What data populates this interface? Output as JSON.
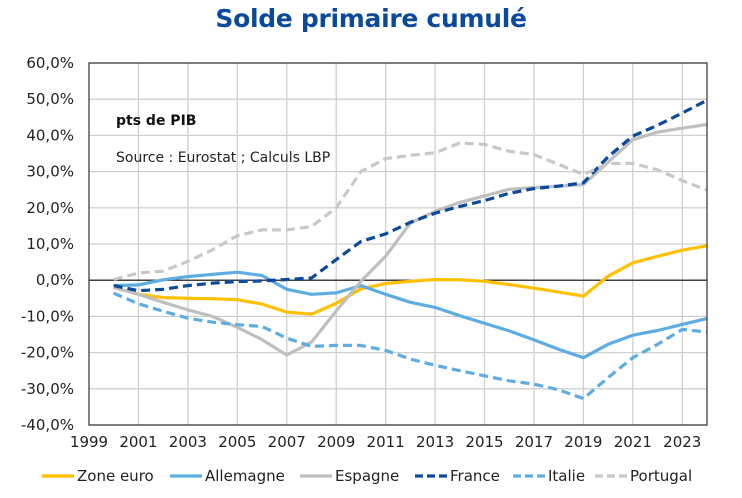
{
  "chart_data": {
    "type": "line",
    "title": "Solde primaire cumulé",
    "xlabel": "",
    "ylabel": "",
    "annotations": [
      "pts de PIB",
      "Source : Eurostat ; Calculs LBP"
    ],
    "xlim": [
      1999,
      2024
    ],
    "ylim": [
      -40,
      60
    ],
    "x_ticks": [
      1999,
      2001,
      2003,
      2005,
      2007,
      2009,
      2011,
      2013,
      2015,
      2017,
      2019,
      2021,
      2023
    ],
    "x_tick_labels": [
      "1999",
      "2001",
      "2003",
      "2005",
      "2007",
      "2009",
      "2011",
      "2013",
      "2015",
      "2017",
      "2019",
      "2021",
      "2023"
    ],
    "y_ticks": [
      60,
      50,
      40,
      30,
      20,
      10,
      0,
      -10,
      -20,
      -30,
      -40
    ],
    "y_tick_labels": [
      "60,0%",
      "50,0%",
      "40,0%",
      "30,0%",
      "20,0%",
      "10,0%",
      "0,0%",
      "-10,0%",
      "-20,0%",
      "-30,0%",
      "-40,0%"
    ],
    "grid": true,
    "legend_position": "bottom",
    "x": [
      2000,
      2001,
      2002,
      2003,
      2004,
      2005,
      2006,
      2007,
      2008,
      2009,
      2010,
      2011,
      2012,
      2013,
      2014,
      2015,
      2016,
      2017,
      2018,
      2019,
      2020,
      2021,
      2022,
      2023,
      2024
    ],
    "series": [
      {
        "name": "Zone euro",
        "color": "#FFC000",
        "dash": "solid",
        "values": [
          -2.0,
          -3.9,
          -4.8,
          -5.0,
          -5.1,
          -5.4,
          -6.6,
          -8.8,
          -9.4,
          -6.4,
          -2.4,
          -0.9,
          -0.3,
          0.2,
          0.1,
          -0.3,
          -1.2,
          -2.2,
          -3.3,
          -4.4,
          1.1,
          4.8,
          6.6,
          8.3,
          9.5
        ]
      },
      {
        "name": "Allemagne",
        "color": "#5DADE2",
        "dash": "solid",
        "values": [
          -1.5,
          -1.3,
          0.1,
          1.0,
          1.6,
          2.2,
          1.3,
          -2.5,
          -3.9,
          -3.5,
          -1.5,
          -3.9,
          -6.1,
          -7.5,
          -9.8,
          -11.9,
          -14.0,
          -16.5,
          -19.1,
          -21.4,
          -17.7,
          -15.2,
          -13.9,
          -12.2,
          -10.6
        ]
      },
      {
        "name": "Espagne",
        "color": "#BFBFBF",
        "dash": "solid",
        "values": [
          -2.0,
          -3.9,
          -6.1,
          -8.2,
          -10.0,
          -13.0,
          -16.4,
          -20.7,
          -17.1,
          -8.5,
          -0.3,
          6.6,
          15.8,
          19.0,
          21.5,
          23.3,
          25.1,
          25.6,
          26.0,
          26.4,
          32.6,
          38.8,
          40.9,
          42.0,
          43.0
        ]
      },
      {
        "name": "France",
        "color": "#0B4A9A",
        "dash": "dashed",
        "values": [
          -1.5,
          -2.9,
          -2.5,
          -1.5,
          -0.8,
          -0.4,
          -0.2,
          0.2,
          0.6,
          5.7,
          10.7,
          12.8,
          16.0,
          18.5,
          20.4,
          22.0,
          24.0,
          25.3,
          26.0,
          26.9,
          34.1,
          39.8,
          42.8,
          46.2,
          49.7
        ]
      },
      {
        "name": "Italie",
        "color": "#5DADE2",
        "dash": "dashed",
        "values": [
          -3.6,
          -6.5,
          -8.6,
          -10.5,
          -11.6,
          -12.3,
          -12.8,
          -16.0,
          -18.3,
          -18.0,
          -18.0,
          -19.4,
          -21.8,
          -23.5,
          -25.0,
          -26.4,
          -27.8,
          -28.7,
          -30.3,
          -32.7,
          -26.9,
          -21.4,
          -17.7,
          -13.6,
          -14.3
        ]
      },
      {
        "name": "Portugal",
        "color": "#C8C8C8",
        "dash": "dashed",
        "values": [
          0.2,
          2.0,
          2.5,
          5.2,
          8.4,
          12.3,
          13.9,
          13.9,
          14.8,
          20.0,
          30.0,
          33.6,
          34.5,
          35.2,
          37.9,
          37.5,
          35.6,
          34.7,
          32.0,
          29.2,
          32.2,
          32.3,
          30.5,
          27.5,
          24.9
        ]
      }
    ]
  }
}
